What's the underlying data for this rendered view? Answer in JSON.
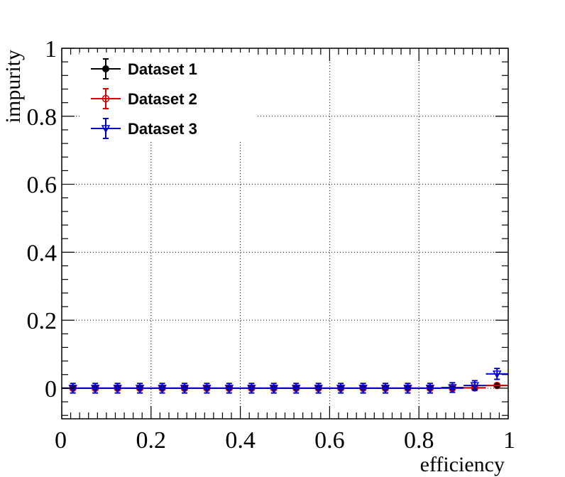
{
  "chart_data": {
    "type": "scatter",
    "xlabel": "efficiency",
    "ylabel": "impurity",
    "xlim": [
      0,
      1
    ],
    "ylim": [
      -0.09,
      1
    ],
    "x_ticks": [
      "0",
      "0.2",
      "0.4",
      "0.6",
      "0.8",
      "1"
    ],
    "y_ticks": [
      "0",
      "0.2",
      "0.4",
      "0.6",
      "0.8",
      "1"
    ],
    "grid": true,
    "legend_position": "top-left",
    "x": [
      0.025,
      0.075,
      0.125,
      0.175,
      0.225,
      0.275,
      0.325,
      0.375,
      0.425,
      0.475,
      0.525,
      0.575,
      0.625,
      0.675,
      0.725,
      0.775,
      0.825,
      0.875,
      0.925,
      0.975
    ],
    "x_error": 0.025,
    "series": [
      {
        "name": "Dataset 1",
        "color": "#000000",
        "marker": "filled-circle",
        "values": [
          0,
          0,
          0,
          0,
          0,
          0,
          0,
          0,
          0,
          0,
          0,
          0,
          0,
          0,
          0,
          0,
          0,
          0,
          0.001,
          0.008
        ],
        "errors": [
          0,
          0,
          0,
          0,
          0,
          0,
          0,
          0,
          0,
          0,
          0,
          0,
          0,
          0,
          0,
          0,
          0,
          0,
          0,
          0
        ]
      },
      {
        "name": "Dataset 2",
        "color": "#dd0000",
        "marker": "open-circle",
        "values": [
          0,
          0,
          0,
          0,
          0,
          0,
          0,
          0,
          0,
          0,
          0,
          0,
          0,
          0,
          0,
          0,
          0,
          0,
          0.001,
          0.008
        ],
        "errors": [
          0,
          0,
          0,
          0,
          0,
          0,
          0,
          0,
          0,
          0,
          0,
          0,
          0,
          0,
          0,
          0,
          0,
          0,
          0,
          0
        ]
      },
      {
        "name": "Dataset 3",
        "color": "#0000cc",
        "marker": "open-triangle-down",
        "values": [
          0,
          0,
          0,
          0,
          0,
          0,
          0,
          0,
          0,
          0,
          0,
          0,
          0,
          0,
          0,
          0,
          0,
          0.002,
          0.008,
          0.042
        ],
        "errors": [
          0.014,
          0.014,
          0.014,
          0.014,
          0.014,
          0.014,
          0.014,
          0.014,
          0.014,
          0.014,
          0.014,
          0.014,
          0.014,
          0.014,
          0.014,
          0.014,
          0.014,
          0.014,
          0.014,
          0.016
        ]
      }
    ]
  }
}
